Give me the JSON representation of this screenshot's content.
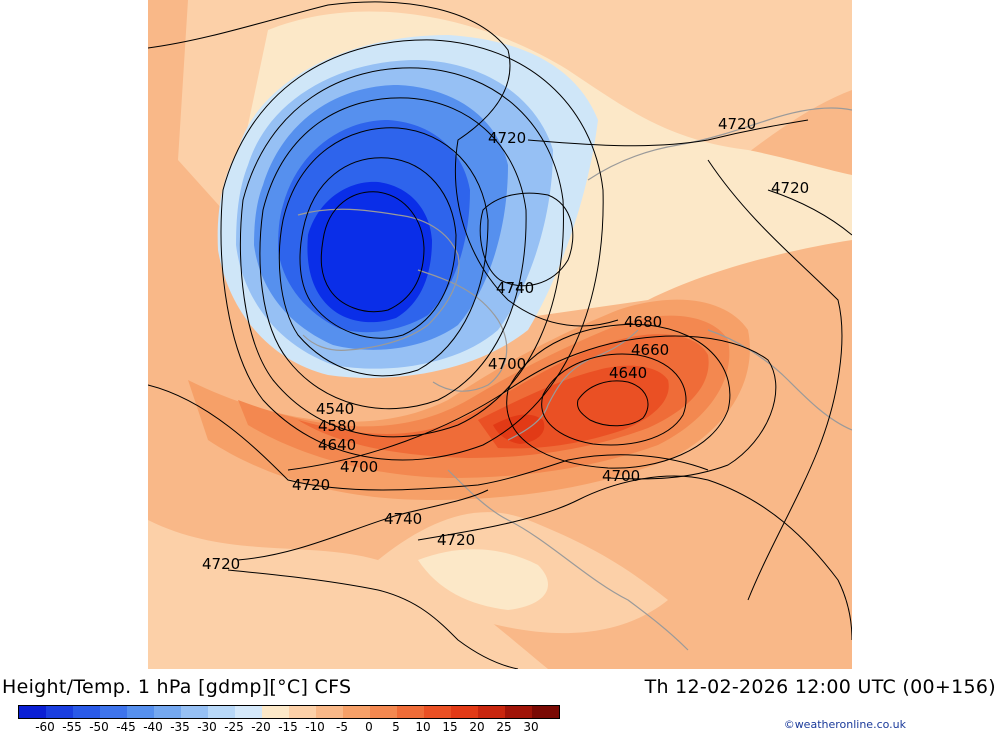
{
  "footer": {
    "title": "Height/Temp. 1 hPa [gdmp][°C] CFS",
    "datetime": "Th 12-02-2026 12:00 UTC (00+156)",
    "credit": "©weatheronline.co.uk"
  },
  "colorbar": {
    "ticks": [
      "-60",
      "-55",
      "-50",
      "-45",
      "-40",
      "-35",
      "-30",
      "-25",
      "-20",
      "-15",
      "-10",
      "-5",
      "0",
      "5",
      "10",
      "15",
      "20",
      "25",
      "30"
    ],
    "colors": [
      "#0a1fd4",
      "#1a3ee0",
      "#2a5ae8",
      "#3e74ec",
      "#5690ee",
      "#74a8f0",
      "#96c0f4",
      "#b8d8f8",
      "#d4e8fa",
      "#fce8c8",
      "#fcd0a8",
      "#f9b888",
      "#f6a068",
      "#f38850",
      "#ef6c38",
      "#ea5024",
      "#e23a16",
      "#c8260e",
      "#a01408",
      "#7a0a04"
    ]
  },
  "map": {
    "fill_colors": {
      "t_minus_55": "#0a2ee8",
      "t_minus_45": "#2e64ec",
      "t_minus_35": "#5690ee",
      "t_minus_25": "#96c0f4",
      "t_minus_20": "#cfe6f8",
      "t_minus_15": "#fce8c8",
      "t_minus_10": "#fcd0a8",
      "t_minus_5": "#f9b888",
      "t_0": "#f6a068",
      "t_5": "#f38850",
      "t_10": "#ef6c38",
      "t_15": "#ea5024",
      "t_20": "#e23a16",
      "coast": "#9a9a9a",
      "contour": "#000000"
    },
    "contour_labels": [
      {
        "id": "c1",
        "text": "4720"
      },
      {
        "id": "c2",
        "text": "4720"
      },
      {
        "id": "c3",
        "text": "4720"
      },
      {
        "id": "c4",
        "text": "4740"
      },
      {
        "id": "c5",
        "text": "4680"
      },
      {
        "id": "c6",
        "text": "4660"
      },
      {
        "id": "c7",
        "text": "4640"
      },
      {
        "id": "c8",
        "text": "4700"
      },
      {
        "id": "c9",
        "text": "4540"
      },
      {
        "id": "c10",
        "text": "4580"
      },
      {
        "id": "c11",
        "text": "4640"
      },
      {
        "id": "c12",
        "text": "4700"
      },
      {
        "id": "c13",
        "text": "4720"
      },
      {
        "id": "c14",
        "text": "4740"
      },
      {
        "id": "c15",
        "text": "4720"
      },
      {
        "id": "c16",
        "text": "4700"
      },
      {
        "id": "c17",
        "text": "4720"
      }
    ]
  }
}
